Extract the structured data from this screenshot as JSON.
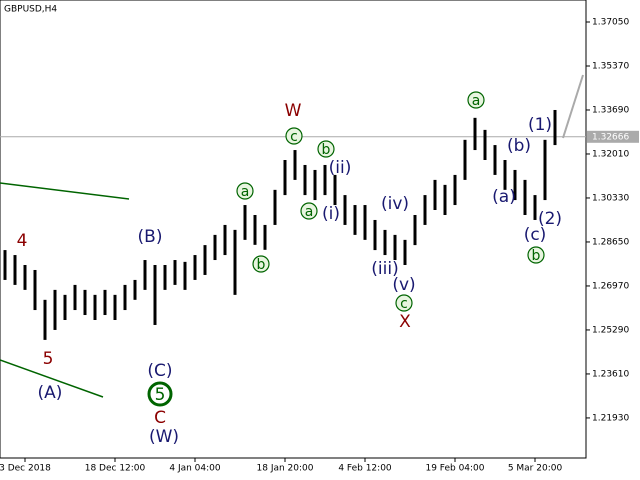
{
  "chart_data": {
    "type": "range_bar",
    "title": "GBPUSD,H4",
    "color": "#000000",
    "highs": [
      1.2834,
      1.2815,
      1.2777,
      1.2758,
      1.2644,
      1.2682,
      1.2663,
      1.2701,
      1.2682,
      1.2663,
      1.2682,
      1.2663,
      1.2701,
      1.272,
      1.2796,
      1.2777,
      1.2777,
      1.2796,
      1.2789,
      1.2815,
      1.2853,
      1.2892,
      1.293,
      1.2911,
      1.3006,
      1.2968,
      1.293,
      1.3064,
      1.3178,
      1.3216,
      1.3159,
      1.314,
      1.3159,
      1.3121,
      1.3044,
      1.3006,
      1.3006,
      1.2949,
      1.2911,
      1.2892,
      1.2873,
      1.2968,
      1.3044,
      1.3102,
      1.3083,
      1.3121,
      1.3255,
      1.3339,
      1.3293,
      1.3235,
      1.3178,
      1.314,
      1.3102,
      1.3044,
      1.3255,
      1.3369
    ],
    "lows": [
      1.272,
      1.2701,
      1.2682,
      1.2605,
      1.2491,
      1.2529,
      1.2567,
      1.2605,
      1.2586,
      1.2567,
      1.2586,
      1.2567,
      1.2605,
      1.2644,
      1.2682,
      1.2548,
      1.2682,
      1.2701,
      1.2682,
      1.272,
      1.2739,
      1.2796,
      1.2815,
      1.2663,
      1.2873,
      1.2854,
      1.2835,
      1.293,
      1.3044,
      1.3102,
      1.3044,
      1.3025,
      1.3044,
      1.3006,
      1.293,
      1.2892,
      1.2873,
      1.2834,
      1.2815,
      1.2796,
      1.2777,
      1.2853,
      1.293,
      1.2987,
      1.2968,
      1.3006,
      1.3102,
      1.3216,
      1.3178,
      1.3121,
      1.3064,
      1.3025,
      1.2968,
      1.2949,
      1.3025,
      1.3235
    ],
    "xticks": [
      {
        "value": 2,
        "label": "3 Dec 2018"
      },
      {
        "value": 11,
        "label": "18 Dec 12:00"
      },
      {
        "value": 19,
        "label": "4 Jan 04:00"
      },
      {
        "value": 28,
        "label": "18 Jan 20:00"
      },
      {
        "value": 36,
        "label": "4 Feb 12:00"
      },
      {
        "value": 45,
        "label": "19 Feb 04:00"
      },
      {
        "value": 53,
        "label": "5 Mar 20:00"
      }
    ],
    "ylim": [
      1.204,
      1.3789
    ],
    "yticks": [
      {
        "value": 1.3705,
        "label": "1.37050"
      },
      {
        "value": 1.3537,
        "label": "1.35370"
      },
      {
        "value": 1.3369,
        "label": "1.33690"
      },
      {
        "value": 1.3201,
        "label": "1.32010"
      },
      {
        "value": 1.3033,
        "label": "1.30330"
      },
      {
        "value": 1.2865,
        "label": "1.28650"
      },
      {
        "value": 1.2697,
        "label": "1.26970"
      },
      {
        "value": 1.2529,
        "label": "1.25290"
      },
      {
        "value": 1.2361,
        "label": "1.23610"
      },
      {
        "value": 1.2193,
        "label": "1.21930"
      }
    ],
    "current_price": {
      "value": 1.32666,
      "label": "1.32666"
    },
    "annotations": [
      {
        "text": "4",
        "color": "#8b0000"
      },
      {
        "text": "5",
        "color": "#8b0000"
      },
      {
        "text": "(A)",
        "color": "#191970"
      },
      {
        "text": "(B)",
        "color": "#191970"
      },
      {
        "text": "(C)",
        "color": "#191970"
      },
      {
        "text": "5",
        "color": "#006400",
        "circled": true
      },
      {
        "text": "C",
        "color": "#8b0000"
      },
      {
        "text": "(W)",
        "color": "#191970"
      },
      {
        "text": "W",
        "color": "#8b0000"
      },
      {
        "text": "c",
        "color": "#006400",
        "circled": true
      },
      {
        "text": "b",
        "color": "#006400",
        "circled": true
      },
      {
        "text": "(ii)",
        "color": "#191970"
      },
      {
        "text": "a",
        "color": "#006400",
        "circled": true
      },
      {
        "text": "a",
        "color": "#006400",
        "circled": true
      },
      {
        "text": "(i)",
        "color": "#191970"
      },
      {
        "text": "b",
        "color": "#006400",
        "circled": true
      },
      {
        "text": "(iv)",
        "color": "#191970"
      },
      {
        "text": "(iii)",
        "color": "#191970"
      },
      {
        "text": "(v)",
        "color": "#191970"
      },
      {
        "text": "c",
        "color": "#006400",
        "circled": true
      },
      {
        "text": "X",
        "color": "#8b0000"
      },
      {
        "text": "a",
        "color": "#006400",
        "circled": true
      },
      {
        "text": "(b)",
        "color": "#191970"
      },
      {
        "text": "(1)",
        "color": "#191970"
      },
      {
        "text": "(a)",
        "color": "#191970"
      },
      {
        "text": "(2)",
        "color": "#191970"
      },
      {
        "text": "(c)",
        "color": "#191970"
      },
      {
        "text": "b",
        "color": "#006400",
        "circled": true
      }
    ]
  }
}
